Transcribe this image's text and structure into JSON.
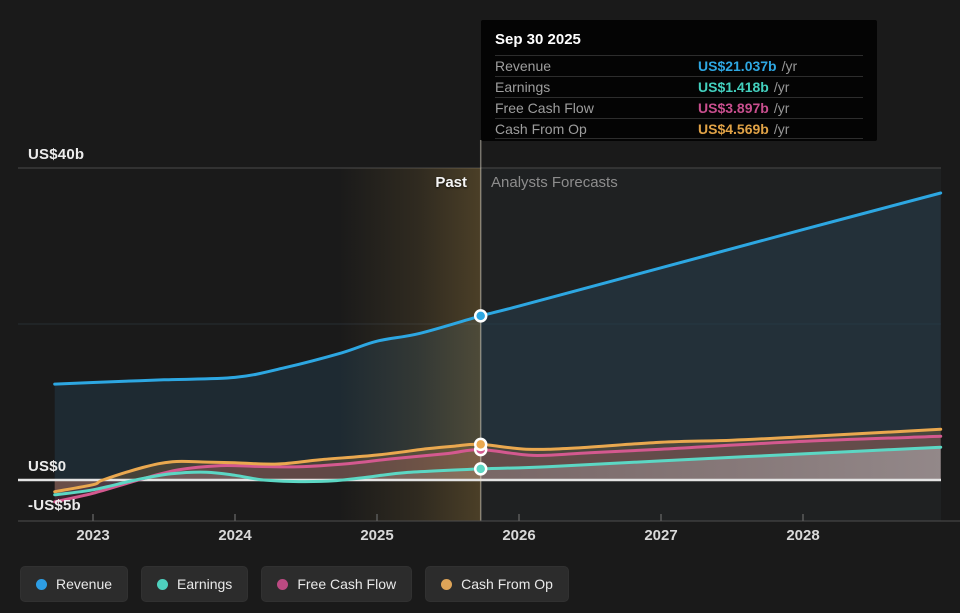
{
  "tooltip": {
    "title": "Sep 30 2025",
    "rows": [
      {
        "label": "Revenue",
        "value": "US$21.037b",
        "suffix": "/yr",
        "color": "#2ea7e2"
      },
      {
        "label": "Earnings",
        "value": "US$1.418b",
        "suffix": "/yr",
        "color": "#43d0be"
      },
      {
        "label": "Free Cash Flow",
        "value": "US$3.897b",
        "suffix": "/yr",
        "color": "#c94f8e"
      },
      {
        "label": "Cash From Op",
        "value": "US$4.569b",
        "suffix": "/yr",
        "color": "#e0a246"
      }
    ]
  },
  "chart_data": {
    "type": "area",
    "unit": "US$ billions per year",
    "x_ticks": [
      2023,
      2024,
      2025,
      2026,
      2027,
      2028
    ],
    "x_range": [
      2022.73,
      2028.97
    ],
    "ylim": [
      -5,
      43
    ],
    "y_ticks": [
      {
        "label": "US$40b",
        "value": 40
      },
      {
        "label": "US$0",
        "value": 0
      },
      {
        "label": "-US$5b",
        "value": -5
      }
    ],
    "gridlines": [
      {
        "value": 40,
        "color": "#3a3a3a"
      },
      {
        "value": 20,
        "color": "#23272b"
      }
    ],
    "zero_line_color": "#e4e4e4",
    "past_label": "Past",
    "forecast_label": "Analysts Forecasts",
    "divider_x": 2025.73,
    "past_window_start": 2024.73,
    "past_highlight_color": "#bd9546",
    "series": [
      {
        "name": "Revenue",
        "color": "#2da7e2",
        "fill_color": "#3a84b4",
        "fill_opacity": 0.16,
        "fill_gradient": false,
        "marker_value": 21.037,
        "points": [
          [
            2022.73,
            12.3
          ],
          [
            2023,
            12.5
          ],
          [
            2023.5,
            12.85
          ],
          [
            2024,
            13.15
          ],
          [
            2024.35,
            14.4
          ],
          [
            2024.75,
            16.3
          ],
          [
            2025,
            17.8
          ],
          [
            2025.3,
            18.8
          ],
          [
            2025.73,
            21.037
          ],
          [
            2026,
            22.3
          ],
          [
            2027,
            27.2
          ],
          [
            2028,
            32.1
          ],
          [
            2028.97,
            36.8
          ]
        ]
      },
      {
        "name": "Free Cash Flow",
        "color": "#d4598f",
        "fill_color": "#c94f8c",
        "fill_opacity": 0.2,
        "fill_gradient": false,
        "marker_value": 3.897,
        "points": [
          [
            2022.73,
            -2.8
          ],
          [
            2023,
            -1.7
          ],
          [
            2023.32,
            0
          ],
          [
            2023.6,
            1.3
          ],
          [
            2023.9,
            1.85
          ],
          [
            2024.15,
            1.75
          ],
          [
            2024.45,
            1.7
          ],
          [
            2024.8,
            2.1
          ],
          [
            2025.1,
            2.7
          ],
          [
            2025.5,
            3.4
          ],
          [
            2025.73,
            3.897
          ],
          [
            2026.1,
            3.15
          ],
          [
            2026.5,
            3.5
          ],
          [
            2027,
            3.95
          ],
          [
            2028,
            4.95
          ],
          [
            2028.97,
            5.6
          ]
        ]
      },
      {
        "name": "Cash From Op",
        "color": "#eaa84f",
        "fill_color": "#e8a64e",
        "fill_opacity": 0.2,
        "fill_gradient": false,
        "marker_value": 4.569,
        "points": [
          [
            2022.73,
            -1.5
          ],
          [
            2023,
            -0.6
          ],
          [
            2023.07,
            0
          ],
          [
            2023.35,
            1.6
          ],
          [
            2023.56,
            2.35
          ],
          [
            2023.8,
            2.3
          ],
          [
            2024,
            2.2
          ],
          [
            2024.3,
            2.05
          ],
          [
            2024.6,
            2.6
          ],
          [
            2025,
            3.2
          ],
          [
            2025.35,
            4.0
          ],
          [
            2025.55,
            4.35
          ],
          [
            2025.73,
            4.569
          ],
          [
            2026.05,
            3.95
          ],
          [
            2026.4,
            4.1
          ],
          [
            2027,
            4.85
          ],
          [
            2027.5,
            5.1
          ],
          [
            2028,
            5.55
          ],
          [
            2028.97,
            6.5
          ]
        ]
      },
      {
        "name": "Earnings",
        "color": "#5cd7c4",
        "fill_color": "#c3c8cd",
        "fill_opacity": 0.3,
        "fill_gradient": true,
        "marker_value": 1.418,
        "points": [
          [
            2022.73,
            -1.9
          ],
          [
            2023,
            -1.25
          ],
          [
            2023.3,
            0
          ],
          [
            2023.55,
            0.8
          ],
          [
            2023.8,
            1.0
          ],
          [
            2024,
            0.6
          ],
          [
            2024.2,
            0
          ],
          [
            2024.45,
            -0.2
          ],
          [
            2024.7,
            -0.1
          ],
          [
            2024.95,
            0.4
          ],
          [
            2025.2,
            0.95
          ],
          [
            2025.73,
            1.418
          ],
          [
            2026.2,
            1.7
          ],
          [
            2027,
            2.45
          ],
          [
            2028,
            3.35
          ],
          [
            2028.97,
            4.2
          ]
        ]
      }
    ]
  },
  "legend": {
    "items": [
      {
        "label": "Revenue",
        "color": "#2d9de4"
      },
      {
        "label": "Earnings",
        "color": "#4ed0bd"
      },
      {
        "label": "Free Cash Flow",
        "color": "#bb4a82"
      },
      {
        "label": "Cash From Op",
        "color": "#dea458"
      }
    ]
  }
}
